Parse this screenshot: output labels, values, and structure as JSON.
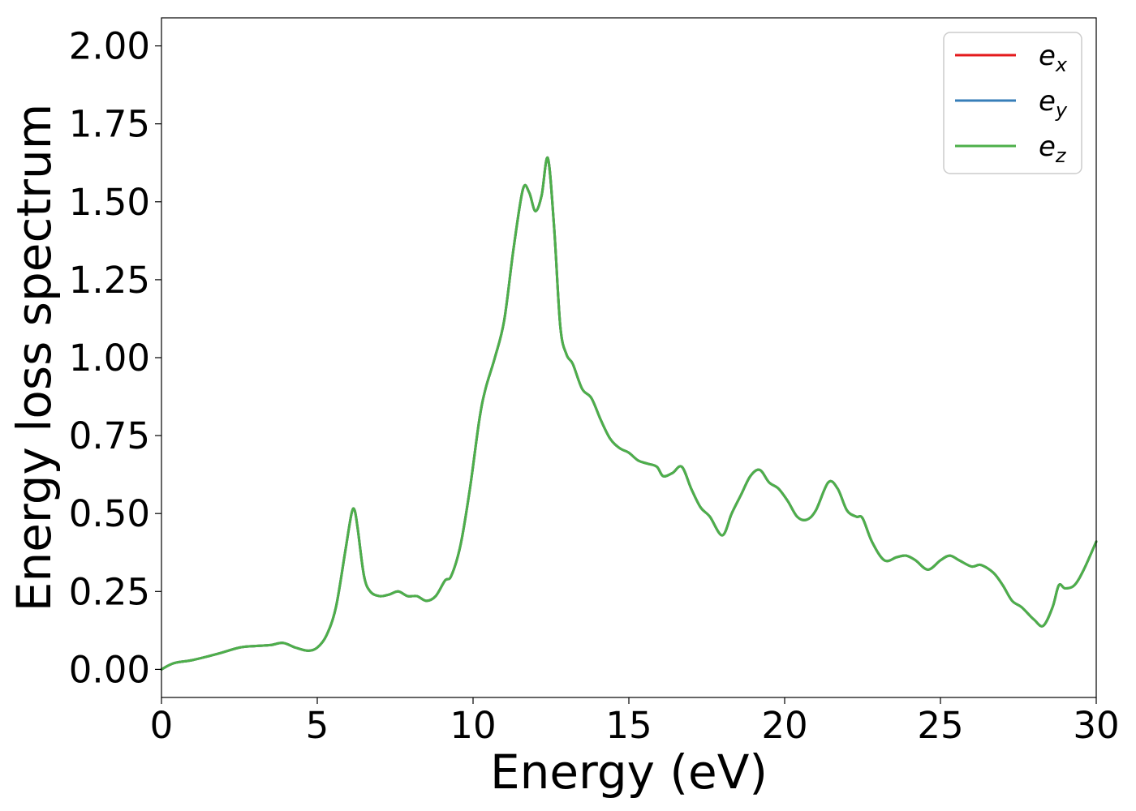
{
  "chart_data": {
    "type": "line",
    "xlabel": "Energy (eV)",
    "ylabel": "Energy loss spectrum",
    "xlim": [
      0,
      30
    ],
    "ylim": [
      -0.09,
      2.09
    ],
    "xticks": [
      0,
      5,
      10,
      15,
      20,
      25,
      30
    ],
    "xtick_labels": [
      "0",
      "5",
      "10",
      "15",
      "20",
      "25",
      "30"
    ],
    "yticks": [
      0.0,
      0.25,
      0.5,
      0.75,
      1.0,
      1.25,
      1.5,
      1.75,
      2.0
    ],
    "ytick_labels": [
      "0.00",
      "0.25",
      "0.50",
      "0.75",
      "1.00",
      "1.25",
      "1.50",
      "1.75",
      "2.00"
    ],
    "grid": false,
    "legend_position": "top-right",
    "series": [
      {
        "name": "e",
        "subscript": "x",
        "color": "#e41a1c"
      },
      {
        "name": "e",
        "subscript": "y",
        "color": "#377eb8"
      },
      {
        "name": "e",
        "subscript": "z",
        "color": "#4daf4a"
      }
    ],
    "x": [
      0,
      0.4,
      1.0,
      1.8,
      2.5,
      3.0,
      3.5,
      3.9,
      4.3,
      4.7,
      5.0,
      5.3,
      5.6,
      5.9,
      6.1,
      6.2,
      6.3,
      6.5,
      6.7,
      7.0,
      7.3,
      7.6,
      7.9,
      8.2,
      8.5,
      8.8,
      9.1,
      9.3,
      9.6,
      9.9,
      10.2,
      10.4,
      10.7,
      11.0,
      11.3,
      11.6,
      11.8,
      12.0,
      12.2,
      12.4,
      12.6,
      12.8,
      13.0,
      13.2,
      13.5,
      13.8,
      14.1,
      14.4,
      14.7,
      15.0,
      15.3,
      15.6,
      15.9,
      16.1,
      16.4,
      16.7,
      17.0,
      17.3,
      17.6,
      18.0,
      18.3,
      18.6,
      18.9,
      19.2,
      19.5,
      19.8,
      20.1,
      20.4,
      20.7,
      21.0,
      21.4,
      21.7,
      22.0,
      22.3,
      22.5,
      22.8,
      23.2,
      23.6,
      23.9,
      24.2,
      24.6,
      25.0,
      25.3,
      25.6,
      26.0,
      26.3,
      26.7,
      27.0,
      27.3,
      27.6,
      28.0,
      28.3,
      28.6,
      28.8,
      29.0,
      29.3,
      29.6,
      30.0
    ],
    "values": [
      0.0,
      0.02,
      0.03,
      0.05,
      0.07,
      0.075,
      0.078,
      0.085,
      0.07,
      0.06,
      0.07,
      0.11,
      0.2,
      0.38,
      0.5,
      0.51,
      0.45,
      0.3,
      0.25,
      0.235,
      0.24,
      0.25,
      0.235,
      0.235,
      0.22,
      0.235,
      0.285,
      0.3,
      0.4,
      0.58,
      0.8,
      0.9,
      1.0,
      1.12,
      1.35,
      1.54,
      1.53,
      1.47,
      1.52,
      1.64,
      1.42,
      1.1,
      1.01,
      0.98,
      0.9,
      0.87,
      0.8,
      0.74,
      0.71,
      0.695,
      0.67,
      0.66,
      0.65,
      0.62,
      0.63,
      0.65,
      0.58,
      0.52,
      0.49,
      0.43,
      0.5,
      0.56,
      0.62,
      0.64,
      0.6,
      0.58,
      0.54,
      0.49,
      0.48,
      0.51,
      0.6,
      0.58,
      0.51,
      0.49,
      0.485,
      0.41,
      0.35,
      0.36,
      0.365,
      0.35,
      0.32,
      0.35,
      0.365,
      0.35,
      0.33,
      0.335,
      0.31,
      0.27,
      0.22,
      0.2,
      0.16,
      0.14,
      0.2,
      0.27,
      0.26,
      0.27,
      0.32,
      0.41
    ]
  }
}
